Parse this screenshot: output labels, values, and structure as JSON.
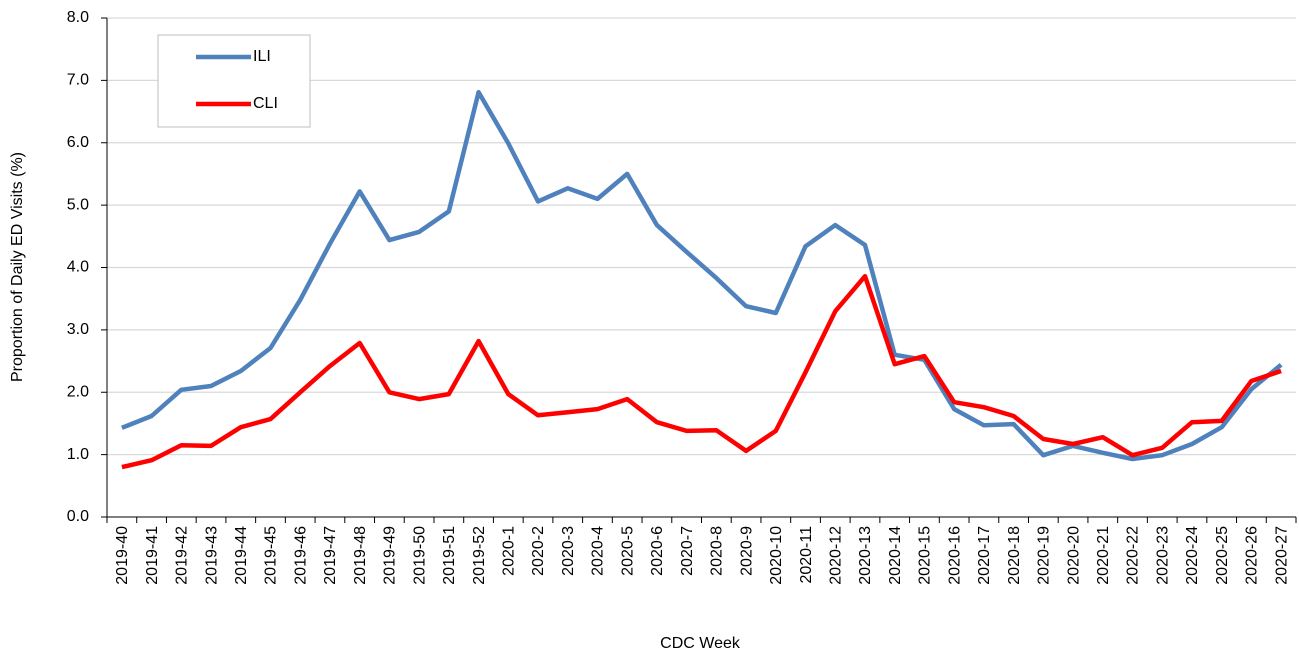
{
  "chart_data": {
    "type": "line",
    "x_label": "CDC Week",
    "y_label": "Proportion of Daily ED Visits (%)",
    "categories": [
      "2019-40",
      "2019-41",
      "2019-42",
      "2019-43",
      "2019-44",
      "2019-45",
      "2019-46",
      "2019-47",
      "2019-48",
      "2019-49",
      "2019-50",
      "2019-51",
      "2019-52",
      "2020-1",
      "2020-2",
      "2020-3",
      "2020-4",
      "2020-5",
      "2020-6",
      "2020-7",
      "2020-8",
      "2020-9",
      "2020-10",
      "2020-11",
      "2020-12",
      "2020-13",
      "2020-14",
      "2020-15",
      "2020-16",
      "2020-17",
      "2020-18",
      "2020-19",
      "2020-20",
      "2020-21",
      "2020-22",
      "2020-23",
      "2020-24",
      "2020-25",
      "2020-26",
      "2020-27"
    ],
    "series": [
      {
        "name": "ILI",
        "color": "#4f81bd",
        "values": [
          1.43,
          1.62,
          2.04,
          2.1,
          2.34,
          2.71,
          3.48,
          4.38,
          5.22,
          4.44,
          4.57,
          4.9,
          6.81,
          5.99,
          5.06,
          5.27,
          5.1,
          5.5,
          4.68,
          4.25,
          3.83,
          3.38,
          3.27,
          4.34,
          4.68,
          4.36,
          2.6,
          2.52,
          1.73,
          1.47,
          1.49,
          0.99,
          1.14,
          1.03,
          0.93,
          0.99,
          1.17,
          1.44,
          2.05,
          2.44
        ]
      },
      {
        "name": "CLI",
        "color": "#ff0000",
        "values": [
          0.8,
          0.91,
          1.15,
          1.14,
          1.44,
          1.57,
          2.0,
          2.42,
          2.79,
          2.0,
          1.89,
          1.97,
          2.82,
          1.97,
          1.63,
          1.68,
          1.73,
          1.89,
          1.52,
          1.38,
          1.39,
          1.06,
          1.38,
          2.32,
          3.3,
          3.86,
          2.45,
          2.58,
          1.84,
          1.76,
          1.62,
          1.25,
          1.17,
          1.28,
          0.99,
          1.11,
          1.52,
          1.54,
          2.18,
          2.34
        ]
      }
    ],
    "ylim": [
      0,
      8
    ],
    "yticks": [
      {
        "value": 0,
        "label": "0.0"
      },
      {
        "value": 1,
        "label": "1.0"
      },
      {
        "value": 2,
        "label": "2.0"
      },
      {
        "value": 3,
        "label": "3.0"
      },
      {
        "value": 4,
        "label": "4.0"
      },
      {
        "value": 5,
        "label": "5.0"
      },
      {
        "value": 6,
        "label": "6.0"
      },
      {
        "value": 7,
        "label": "7.0"
      },
      {
        "value": 8,
        "label": "8.0"
      }
    ],
    "grid": true,
    "legend": "upper left"
  }
}
